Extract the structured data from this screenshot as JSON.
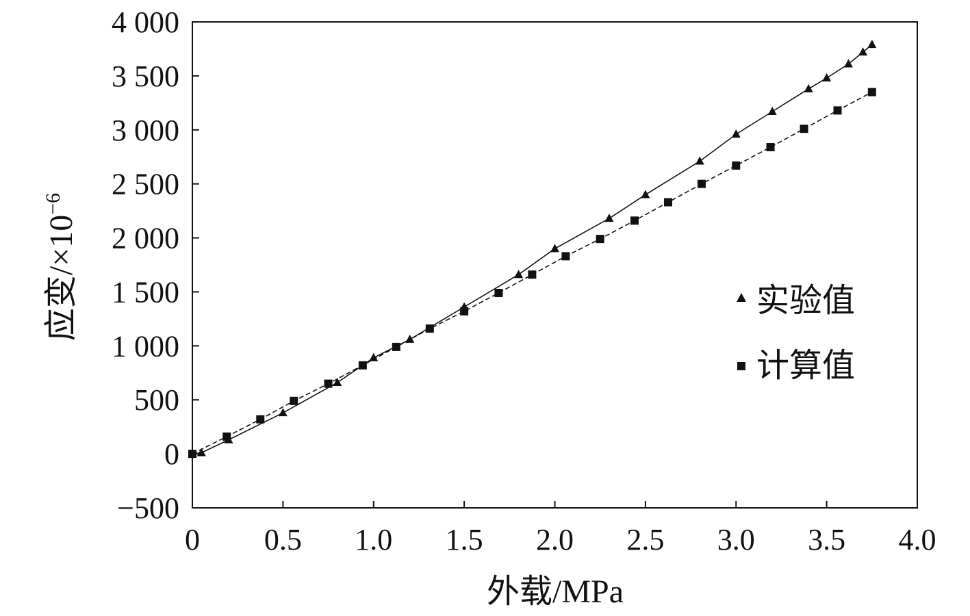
{
  "chart_data": {
    "type": "line",
    "xlabel": "外载/MPa",
    "ylabel_base": "应变/×10",
    "ylabel_exponent": "−6",
    "xlim": [
      0,
      4.0
    ],
    "ylim": [
      -500,
      4000
    ],
    "x_ticks": [
      0,
      0.5,
      1.0,
      1.5,
      2.0,
      2.5,
      3.0,
      3.5,
      4.0
    ],
    "x_tick_labels": [
      "0",
      "0.5",
      "1.0",
      "1.5",
      "2.0",
      "2.5",
      "3.0",
      "3.5",
      "4.0"
    ],
    "y_ticks": [
      -500,
      0,
      500,
      1000,
      1500,
      2000,
      2500,
      3000,
      3500,
      4000
    ],
    "y_tick_labels": [
      "−500",
      "0",
      "500",
      "1 000",
      "1 500",
      "2 000",
      "2 500",
      "3 000",
      "3 500",
      "4 000"
    ],
    "grid": false,
    "legend_position": "right",
    "series": [
      {
        "name": "实验值",
        "marker": "triangle",
        "line_style": "solid",
        "points": [
          [
            0.0,
            0
          ],
          [
            0.05,
            10
          ],
          [
            0.2,
            130
          ],
          [
            0.5,
            380
          ],
          [
            0.8,
            660
          ],
          [
            1.0,
            890
          ],
          [
            1.2,
            1060
          ],
          [
            1.5,
            1360
          ],
          [
            1.8,
            1660
          ],
          [
            2.0,
            1900
          ],
          [
            2.3,
            2180
          ],
          [
            2.5,
            2400
          ],
          [
            2.8,
            2710
          ],
          [
            3.0,
            2960
          ],
          [
            3.2,
            3170
          ],
          [
            3.4,
            3380
          ],
          [
            3.5,
            3480
          ],
          [
            3.62,
            3610
          ],
          [
            3.7,
            3720
          ],
          [
            3.75,
            3790
          ]
        ]
      },
      {
        "name": "计算值",
        "marker": "square",
        "line_style": "dashed",
        "points": [
          [
            0.0,
            0
          ],
          [
            0.19,
            160
          ],
          [
            0.375,
            320
          ],
          [
            0.56,
            490
          ],
          [
            0.75,
            650
          ],
          [
            0.94,
            820
          ],
          [
            1.125,
            990
          ],
          [
            1.31,
            1160
          ],
          [
            1.5,
            1320
          ],
          [
            1.69,
            1490
          ],
          [
            1.875,
            1660
          ],
          [
            2.06,
            1830
          ],
          [
            2.25,
            1990
          ],
          [
            2.44,
            2160
          ],
          [
            2.625,
            2330
          ],
          [
            2.81,
            2500
          ],
          [
            3.0,
            2670
          ],
          [
            3.19,
            2840
          ],
          [
            3.375,
            3010
          ],
          [
            3.56,
            3180
          ],
          [
            3.75,
            3350
          ]
        ]
      }
    ]
  }
}
